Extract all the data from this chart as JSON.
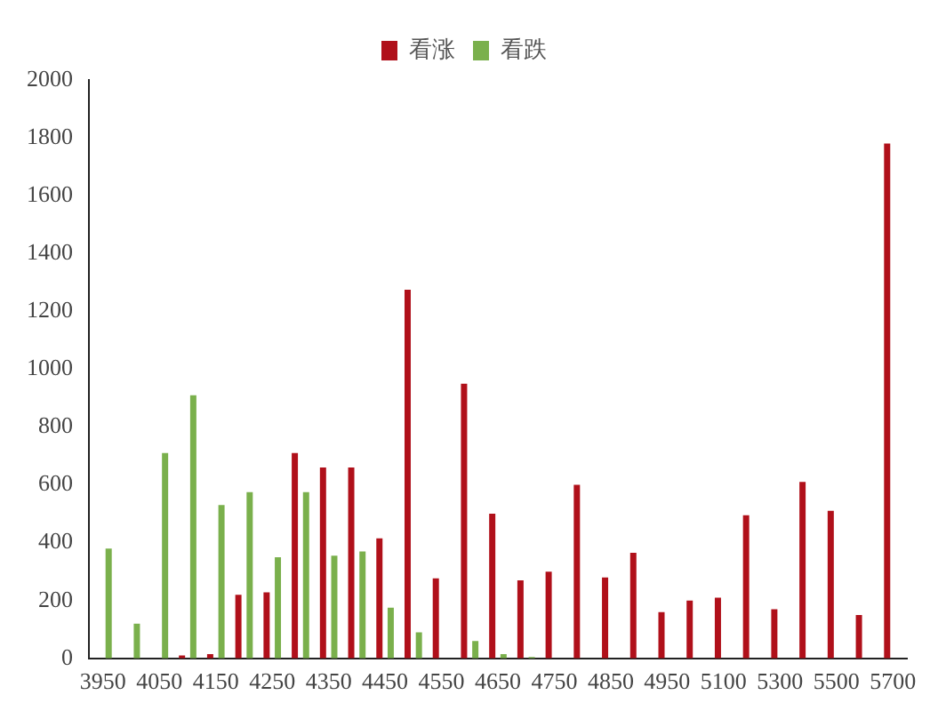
{
  "chart_data": {
    "type": "bar",
    "categories": [
      "3950",
      null,
      "4050",
      null,
      "4150",
      null,
      "4250",
      null,
      "4350",
      null,
      "4450",
      null,
      "4550",
      null,
      "4650",
      null,
      "4750",
      null,
      "4850",
      null,
      "4950",
      null,
      "5100",
      null,
      "5300",
      null,
      "5500",
      null,
      "5700"
    ],
    "series": [
      {
        "name": "看涨",
        "color": "#b0101a",
        "values": [
          0,
          0,
          0,
          10,
          15,
          220,
          228,
          710,
          660,
          660,
          415,
          1275,
          277,
          950,
          500,
          270,
          300,
          600,
          280,
          365,
          160,
          200,
          210,
          495,
          170,
          610,
          510,
          150,
          1780
        ]
      },
      {
        "name": "看跌",
        "color": "#7ab04c",
        "values": [
          380,
          120,
          710,
          910,
          530,
          575,
          350,
          575,
          355,
          370,
          175,
          90,
          0,
          60,
          15,
          5,
          0,
          0,
          0,
          0,
          0,
          0,
          0,
          0,
          0,
          0,
          0,
          0,
          0
        ]
      }
    ],
    "ylim": [
      0,
      2000
    ],
    "yticks": [
      0,
      200,
      400,
      600,
      800,
      1000,
      1200,
      1400,
      1600,
      1800,
      2000
    ],
    "grid": false,
    "legend": "top"
  }
}
